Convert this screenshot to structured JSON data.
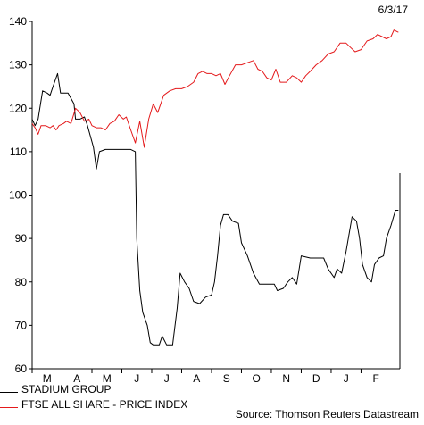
{
  "date_label": "6/3/17",
  "source_label": "Source: Thomson Reuters Datastream",
  "chart_data": {
    "type": "line",
    "title": "",
    "xlabel": "",
    "ylabel": "",
    "ylim": [
      60,
      140
    ],
    "y_ticks": [
      60,
      70,
      80,
      90,
      100,
      110,
      120,
      130,
      140
    ],
    "x_ticks": [
      "M",
      "A",
      "M",
      "J",
      "J",
      "A",
      "S",
      "O",
      "N",
      "D",
      "J",
      "F"
    ],
    "x_range": [
      0,
      12.3
    ],
    "grid": false,
    "legend_position": "bottom-left",
    "series": [
      {
        "name": "STADIUM GROUP",
        "color": "#000000",
        "points": [
          [
            0.0,
            117.5
          ],
          [
            0.1,
            116.0
          ],
          [
            0.2,
            117.5
          ],
          [
            0.35,
            124.0
          ],
          [
            0.5,
            123.5
          ],
          [
            0.6,
            123.0
          ],
          [
            0.7,
            125.0
          ],
          [
            0.85,
            128.0
          ],
          [
            0.95,
            123.5
          ],
          [
            1.2,
            123.5
          ],
          [
            1.4,
            121.0
          ],
          [
            1.45,
            117.5
          ],
          [
            1.6,
            117.5
          ],
          [
            1.75,
            118.0
          ],
          [
            1.85,
            116.0
          ],
          [
            2.05,
            111.0
          ],
          [
            2.15,
            106.0
          ],
          [
            2.25,
            110.0
          ],
          [
            2.45,
            110.5
          ],
          [
            2.6,
            110.5
          ],
          [
            3.3,
            110.5
          ],
          [
            3.45,
            110.0
          ],
          [
            3.5,
            90.0
          ],
          [
            3.6,
            78.0
          ],
          [
            3.7,
            73.0
          ],
          [
            3.85,
            70.0
          ],
          [
            3.95,
            66.0
          ],
          [
            4.05,
            65.5
          ],
          [
            4.25,
            65.5
          ],
          [
            4.35,
            67.5
          ],
          [
            4.5,
            65.5
          ],
          [
            4.7,
            65.5
          ],
          [
            4.85,
            74.0
          ],
          [
            4.95,
            82.0
          ],
          [
            5.1,
            80.0
          ],
          [
            5.25,
            78.5
          ],
          [
            5.4,
            75.5
          ],
          [
            5.6,
            75.0
          ],
          [
            5.8,
            76.5
          ],
          [
            6.0,
            77.0
          ],
          [
            6.1,
            80.0
          ],
          [
            6.2,
            86.0
          ],
          [
            6.3,
            93.0
          ],
          [
            6.4,
            95.5
          ],
          [
            6.55,
            95.5
          ],
          [
            6.7,
            94.0
          ],
          [
            6.9,
            93.5
          ],
          [
            7.0,
            89.0
          ],
          [
            7.2,
            86.0
          ],
          [
            7.4,
            82.0
          ],
          [
            7.6,
            79.5
          ],
          [
            8.1,
            79.5
          ],
          [
            8.2,
            78.0
          ],
          [
            8.4,
            78.5
          ],
          [
            8.55,
            80.0
          ],
          [
            8.7,
            81.0
          ],
          [
            8.85,
            79.5
          ],
          [
            9.0,
            86.0
          ],
          [
            9.3,
            85.5
          ],
          [
            9.6,
            85.5
          ],
          [
            9.75,
            85.5
          ],
          [
            9.9,
            83.0
          ],
          [
            10.1,
            81.0
          ],
          [
            10.2,
            83.0
          ],
          [
            10.35,
            82.0
          ],
          [
            10.5,
            87.0
          ],
          [
            10.7,
            95.0
          ],
          [
            10.85,
            94.0
          ],
          [
            10.95,
            90.0
          ],
          [
            11.05,
            84.0
          ],
          [
            11.2,
            81.0
          ],
          [
            11.35,
            80.0
          ],
          [
            11.45,
            84.0
          ],
          [
            11.6,
            85.5
          ],
          [
            11.75,
            86.0
          ],
          [
            11.85,
            90.0
          ],
          [
            12.0,
            93.0
          ],
          [
            12.15,
            96.5
          ],
          [
            12.25,
            96.5
          ]
        ]
      },
      {
        "name": "FTSE ALL SHARE - PRICE INDEX",
        "color": "#e41a1c",
        "points": [
          [
            0.0,
            116.5
          ],
          [
            0.1,
            115.5
          ],
          [
            0.2,
            114.0
          ],
          [
            0.3,
            116.0
          ],
          [
            0.45,
            116.0
          ],
          [
            0.6,
            115.5
          ],
          [
            0.7,
            116.0
          ],
          [
            0.8,
            115.0
          ],
          [
            0.9,
            116.0
          ],
          [
            1.05,
            116.5
          ],
          [
            1.15,
            117.0
          ],
          [
            1.3,
            116.5
          ],
          [
            1.45,
            120.0
          ],
          [
            1.6,
            119.0
          ],
          [
            1.75,
            117.0
          ],
          [
            1.9,
            117.5
          ],
          [
            2.0,
            116.0
          ],
          [
            2.15,
            115.5
          ],
          [
            2.3,
            115.5
          ],
          [
            2.45,
            115.0
          ],
          [
            2.6,
            116.5
          ],
          [
            2.75,
            117.0
          ],
          [
            2.9,
            118.5
          ],
          [
            3.05,
            117.5
          ],
          [
            3.15,
            118.0
          ],
          [
            3.3,
            115.0
          ],
          [
            3.45,
            112.0
          ],
          [
            3.6,
            117.0
          ],
          [
            3.75,
            111.0
          ],
          [
            3.9,
            117.5
          ],
          [
            4.05,
            121.0
          ],
          [
            4.2,
            119.0
          ],
          [
            4.4,
            123.0
          ],
          [
            4.6,
            124.0
          ],
          [
            4.8,
            124.5
          ],
          [
            5.0,
            124.5
          ],
          [
            5.2,
            125.0
          ],
          [
            5.4,
            126.0
          ],
          [
            5.55,
            128.0
          ],
          [
            5.7,
            128.5
          ],
          [
            5.85,
            128.0
          ],
          [
            6.0,
            128.0
          ],
          [
            6.15,
            127.5
          ],
          [
            6.3,
            128.0
          ],
          [
            6.45,
            125.5
          ],
          [
            6.6,
            127.5
          ],
          [
            6.8,
            130.0
          ],
          [
            7.0,
            130.0
          ],
          [
            7.2,
            130.5
          ],
          [
            7.4,
            131.0
          ],
          [
            7.55,
            129.0
          ],
          [
            7.7,
            128.5
          ],
          [
            7.85,
            127.0
          ],
          [
            8.0,
            126.5
          ],
          [
            8.15,
            129.0
          ],
          [
            8.3,
            126.0
          ],
          [
            8.5,
            126.0
          ],
          [
            8.7,
            127.5
          ],
          [
            8.85,
            127.0
          ],
          [
            9.0,
            126.0
          ],
          [
            9.15,
            127.5
          ],
          [
            9.3,
            128.5
          ],
          [
            9.5,
            130.0
          ],
          [
            9.7,
            131.0
          ],
          [
            9.9,
            132.5
          ],
          [
            10.1,
            133.0
          ],
          [
            10.3,
            135.0
          ],
          [
            10.5,
            135.0
          ],
          [
            10.65,
            134.0
          ],
          [
            10.8,
            133.0
          ],
          [
            11.0,
            133.5
          ],
          [
            11.2,
            135.5
          ],
          [
            11.4,
            136.0
          ],
          [
            11.55,
            137.0
          ],
          [
            11.7,
            136.5
          ],
          [
            11.85,
            136.0
          ],
          [
            12.0,
            136.5
          ],
          [
            12.1,
            138.0
          ],
          [
            12.25,
            137.5
          ]
        ]
      }
    ]
  }
}
